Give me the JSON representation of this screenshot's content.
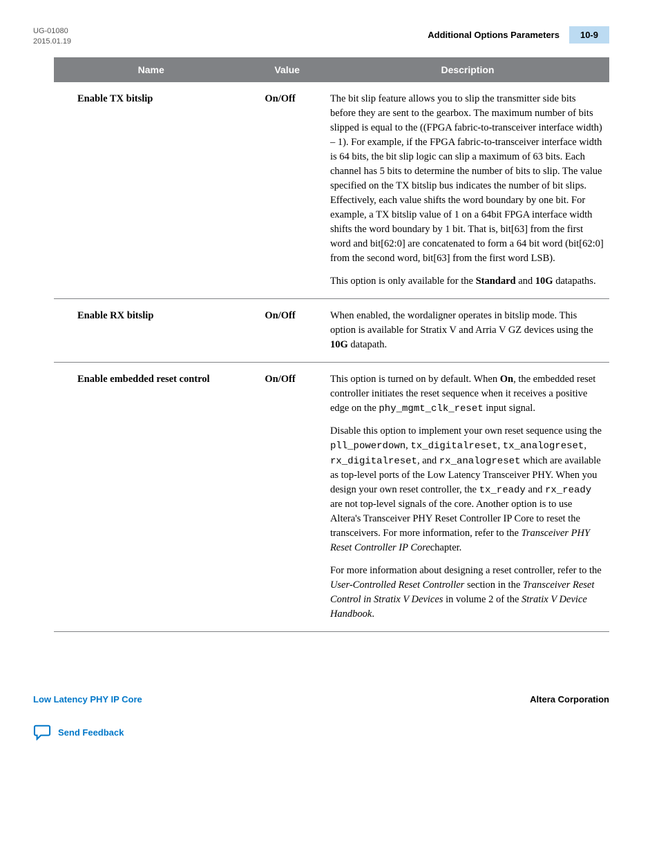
{
  "header": {
    "doc_id": "UG-01080",
    "date": "2015.01.19",
    "section": "Additional Options Parameters",
    "page": "10-9"
  },
  "table": {
    "columns": [
      "Name",
      "Value",
      "Description"
    ],
    "rows": [
      {
        "name": "Enable TX bitslip",
        "value": "On/Off",
        "desc_html": "<p class='para'>The bit slip feature allows you to slip the transmitter side bits before they are sent to the gearbox. The maximum number of bits slipped is equal to the ((FPGA fabric-to-transceiver interface width) – 1). For example, if the FPGA fabric-to-transceiver interface width is 64 bits, the bit slip logic can slip a maximum of 63 bits. Each channel has 5 bits to determine the number of bits to slip. The value specified on the TX bitslip bus indicates the number of bit slips. Effectively, each value shifts the word boundary by one bit. For example, a TX bitslip value of 1 on a 64bit FPGA interface width shifts the word boundary by 1 bit. That is, bit[63] from the first word and bit[62:0] are concatenated to form a 64 bit word (bit[62:0] from the second word, bit[63] from the first word LSB).</p><p class='para'>This option is only available for the <strong>Standard</strong> and <strong>10G</strong> datapaths.</p>"
      },
      {
        "name": "Enable RX bitslip",
        "value": "On/Off",
        "desc_html": "<p class='para'>When enabled, the wordaligner operates in bitslip mode. This option is available for Stratix V and Arria V GZ devices using the <strong>10G</strong> datapath.</p>"
      },
      {
        "name": "Enable embedded reset control",
        "value": "On/Off",
        "desc_html": "<p class='para'>This option is turned on by default. When <strong>On</strong>, the embedded reset controller initiates the reset sequence when it receives a positive edge on the <span class='mono'>phy_mgmt_clk_reset</span> input signal.</p><p class='para'>Disable this option to implement your own reset sequence using the <span class='mono'>pll_powerdown</span>, <span class='mono'>tx_digitalreset</span>, <span class='mono'>tx_analogreset</span>, <span class='mono'>rx_digitalreset</span>, and <span class='mono'>rx_analogreset</span> which are available as top-level ports of the Low Latency Transceiver PHY. When you design your own reset controller, the <span class='mono'>tx_ready</span> and <span class='mono'>rx_ready</span> are not top-level signals of the core. Another option is to use Altera's Transceiver PHY Reset Controller IP Core to reset the transceivers. For more information, refer to the <span class='italic'>Transceiver PHY Reset Controller IP Core</span>chapter.</p><p class='para'>For more information about designing a reset controller, refer to the <span class='italic'>User-Controlled Reset Controller</span> section in the <span class='italic'>Transceiver Reset Control in Stratix V Devices</span> in volume 2 of the <span class='italic'>Stratix V Device Handbook</span>.</p>"
      }
    ]
  },
  "footer": {
    "left": "Low Latency PHY IP Core",
    "right": "Altera Corporation",
    "feedback": "Send Feedback"
  },
  "colors": {
    "header_gray": "#808285",
    "page_badge_bg": "#bcdbf2",
    "link_blue": "#0077c8"
  }
}
